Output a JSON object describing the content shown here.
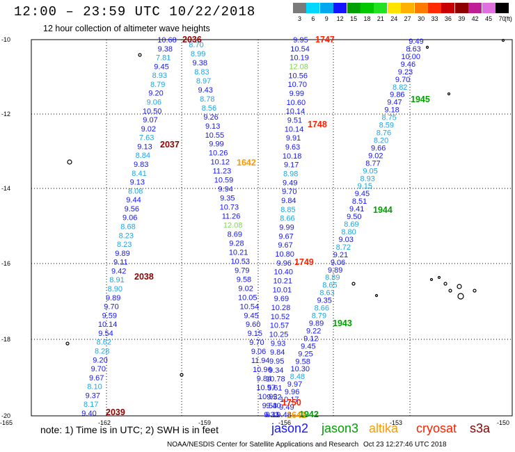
{
  "title": "12:00 – 23:59 UTC 10/22/2018",
  "subtitle": "12 hour collection of altimeter wave heights",
  "scale": {
    "unit_label": "(ft)",
    "bins": [
      {
        "label": "3",
        "color": "#7a7a7a"
      },
      {
        "label": "6",
        "color": "#00d7ff"
      },
      {
        "label": "9",
        "color": "#00a8f0"
      },
      {
        "label": "12",
        "color": "#1414ff"
      },
      {
        "label": "15",
        "color": "#00a000"
      },
      {
        "label": "18",
        "color": "#00c800"
      },
      {
        "label": "21",
        "color": "#22e022"
      },
      {
        "label": "24",
        "color": "#ffe400"
      },
      {
        "label": "27",
        "color": "#ffb000"
      },
      {
        "label": "30",
        "color": "#ff7a00"
      },
      {
        "label": "33",
        "color": "#ff2a00"
      },
      {
        "label": "36",
        "color": "#c80000"
      },
      {
        "label": "39",
        "color": "#8c0000"
      },
      {
        "label": "42",
        "color": "#be1e96"
      },
      {
        "label": "45",
        "color": "#e070e0"
      },
      {
        "label": "70",
        "color": "#000000"
      }
    ]
  },
  "axes": {
    "lat_labels": [
      "-10",
      "-12",
      "-14",
      "-16",
      "-18",
      "-20"
    ],
    "lon_labels": [
      "-165",
      "-162",
      "-159",
      "-156",
      "-153",
      "-150"
    ]
  },
  "colors": {
    "dark_blue": "#1414ff",
    "light_blue": "#1aa6e8",
    "green_swh": "#7ad84a",
    "orange_swh": "#ff9a00",
    "jason2": "#1414ff",
    "jason3": "#00a000",
    "altika": "#ff9a00",
    "cryosat": "#ff2000",
    "s3a": "#8c0000"
  },
  "tracks": [
    {
      "id": "track-2036-2039",
      "values": [
        "10.68",
        "9.38",
        "7.81",
        "9.45",
        "8.93",
        "8.79",
        "9.20",
        "9.06",
        "10.50",
        "9.07",
        "9.02",
        "7.63",
        "9.13",
        "8.84",
        "9.83",
        "8.41",
        "9.13",
        "8.08",
        "9.44",
        "9.56",
        "9.06",
        "8.68",
        "8.23",
        "8.23",
        "9.89",
        "9.11",
        "9.42",
        "8.91",
        "8.90",
        "9.89",
        "9.70",
        "9.59",
        "10.14",
        "9.54",
        "8.62",
        "8.28",
        "9.20",
        "9.70",
        "9.67",
        "8.10",
        "9.37",
        "8.17",
        "9.40"
      ]
    },
    {
      "id": "track-2036-1642",
      "values": [
        "8.70",
        "8.99",
        "9.38",
        "8.83",
        "8.97",
        "9.43",
        "8.78",
        "8.56",
        "9.26",
        "9.13",
        "10.55",
        "9.99",
        "10.26",
        "10.12",
        "11.23",
        "10.59",
        "9.94",
        "9.35",
        "10.73",
        "11.26",
        "12.08",
        "8.69",
        "9.28",
        "10.21",
        "10.53",
        "9.79",
        "9.58",
        "9.02",
        "10.05",
        "10.54",
        "9.45",
        "9.60",
        "9.15",
        "9.70",
        "9.06",
        "11.94",
        "10.96",
        "9.84",
        "10.57",
        "10.92",
        "9.53",
        "9.33"
      ]
    },
    {
      "id": "track-1747-1750",
      "values": [
        "9.95",
        "10.54",
        "10.19",
        "12.08",
        "10.56",
        "10.70",
        "9.99",
        "10.60",
        "10.14",
        "9.51",
        "10.14",
        "9.91",
        "9.63",
        "10.18",
        "9.17",
        "8.98",
        "9.49",
        "9.70",
        "9.84",
        "8.85",
        "8.66",
        "9.99",
        "9.67",
        "9.67",
        "10.80",
        "9.96",
        "10.40",
        "10.21",
        "10.01",
        "9.69",
        "10.28",
        "10.52",
        "10.57",
        "10.25",
        "9.93",
        "9.84",
        "9.95",
        "9.34",
        "10.78",
        "9.61",
        "9.52",
        "9.40",
        "9.11"
      ]
    },
    {
      "id": "track-1945-1942",
      "values": [
        "9.49",
        "8.63",
        "10.00",
        "9.46",
        "9.23",
        "9.70",
        "8.82",
        "9.86",
        "9.47",
        "9.18",
        "8.75",
        "8.59",
        "8.76",
        "8.20",
        "9.66",
        "9.02",
        "8.77",
        "9.05",
        "8.93",
        "9.15",
        "9.45",
        "8.51",
        "9.41",
        "9.50",
        "8.69",
        "8.80",
        "9.03",
        "8.72",
        "9.21",
        "9.06",
        "9.89",
        "8.89",
        "8.65",
        "8.63",
        "9.35",
        "8.66",
        "8.79",
        "9.89",
        "9.22",
        "9.12",
        "9.45",
        "9.25",
        "9.58",
        "10.30",
        "8.48",
        "9.97",
        "9.96",
        "10.17",
        "9.49",
        "9.48"
      ]
    }
  ],
  "pass_times": [
    {
      "id": "pass-2036",
      "label": "2036",
      "color": "#8c0000"
    },
    {
      "id": "pass-2037",
      "label": "2037",
      "color": "#8c0000"
    },
    {
      "id": "pass-2038",
      "label": "2038",
      "color": "#8c0000"
    },
    {
      "id": "pass-2039",
      "label": "2039",
      "color": "#8c0000"
    },
    {
      "id": "pass-1642",
      "label": "1642",
      "color": "#ff9a00"
    },
    {
      "id": "pass-1641",
      "label": "1641",
      "color": "#ff9a00"
    },
    {
      "id": "pass-1747",
      "label": "1747",
      "color": "#ff2000"
    },
    {
      "id": "pass-1748",
      "label": "1748",
      "color": "#ff2000"
    },
    {
      "id": "pass-1749",
      "label": "1749",
      "color": "#ff2000"
    },
    {
      "id": "pass-1750",
      "label": "1750",
      "color": "#ff2000"
    },
    {
      "id": "pass-1945",
      "label": "1945",
      "color": "#00a000"
    },
    {
      "id": "pass-1944",
      "label": "1944",
      "color": "#00a000"
    },
    {
      "id": "pass-1943",
      "label": "1943",
      "color": "#00a000"
    },
    {
      "id": "pass-1942",
      "label": "1942",
      "color": "#00a000"
    }
  ],
  "note": "note: 1) Time is in UTC; 2) SWH is in feet",
  "legend": {
    "jason2": "jason2",
    "jason3": "jason3",
    "altika": "altika",
    "cryosat": "cryosat",
    "s3a": "s3a"
  },
  "credit": "NOAA/NESDIS Center for Satellite Applications and Research",
  "timestamp": "Oct 23 12:27:46 UTC 2018"
}
